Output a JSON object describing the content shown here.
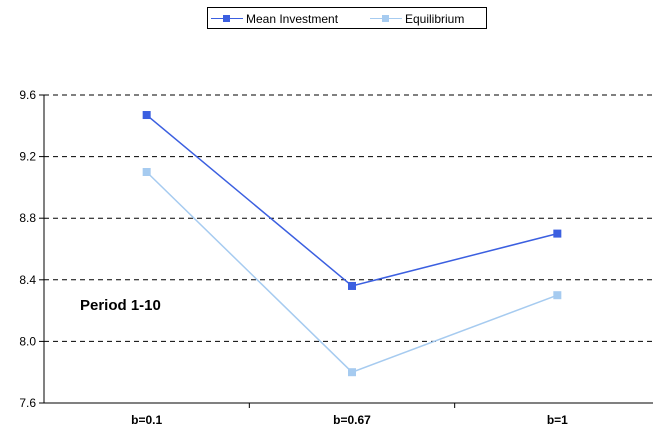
{
  "chart_data": {
    "type": "line",
    "categories": [
      "b=0.1",
      "b=0.67",
      "b=1"
    ],
    "series": [
      {
        "name": "Mean Investment",
        "values": [
          9.47,
          8.36,
          8.7
        ],
        "color": "#3b5fe0"
      },
      {
        "name": "Equilibrium",
        "values": [
          9.1,
          7.8,
          8.3
        ],
        "color": "#a6cbf0"
      }
    ],
    "ylim": [
      7.6,
      9.6
    ],
    "yticks": [
      "7.6",
      "8.0",
      "8.4",
      "8.8",
      "9.2",
      "9.6"
    ],
    "grid": true,
    "legend_position": "top",
    "annotation": "Period 1-10"
  }
}
